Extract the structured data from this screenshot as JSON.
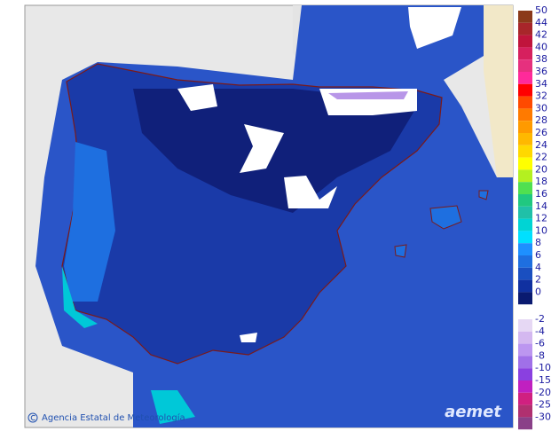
{
  "credit": "Agencia Estatal de Meteorología",
  "logo": "aemet",
  "legend": {
    "warm": [
      {
        "label": "50",
        "color": "#8b3a1a"
      },
      {
        "label": "44",
        "color": "#a8262a"
      },
      {
        "label": "42",
        "color": "#c0143c"
      },
      {
        "label": "40",
        "color": "#d6205e"
      },
      {
        "label": "38",
        "color": "#e6307e"
      },
      {
        "label": "36",
        "color": "#ff2a9a"
      },
      {
        "label": "34",
        "color": "#ff0000"
      },
      {
        "label": "32",
        "color": "#ff4a00"
      },
      {
        "label": "30",
        "color": "#ff7a00"
      },
      {
        "label": "28",
        "color": "#ff9a00"
      },
      {
        "label": "26",
        "color": "#ffb800"
      },
      {
        "label": "24",
        "color": "#ffd800"
      },
      {
        "label": "22",
        "color": "#ffff00"
      },
      {
        "label": "20",
        "color": "#b4f020"
      },
      {
        "label": "18",
        "color": "#50e050"
      },
      {
        "label": "16",
        "color": "#20c880"
      },
      {
        "label": "14",
        "color": "#20c0a8"
      },
      {
        "label": "12",
        "color": "#00d4d4"
      },
      {
        "label": "10",
        "color": "#00e0ff"
      },
      {
        "label": "8",
        "color": "#1e90ff"
      },
      {
        "label": "6",
        "color": "#1e6fe0"
      },
      {
        "label": "4",
        "color": "#1a4fc0"
      },
      {
        "label": "2",
        "color": "#1030a0"
      },
      {
        "label": "0",
        "color": "#0a1a70"
      }
    ],
    "cold": [
      {
        "label": "-2",
        "color": "#e6d8f4"
      },
      {
        "label": "-4",
        "color": "#d4b8f0"
      },
      {
        "label": "-6",
        "color": "#bc96f0"
      },
      {
        "label": "-8",
        "color": "#a070e8"
      },
      {
        "label": "-10",
        "color": "#8a40e0"
      },
      {
        "label": "-15",
        "color": "#c020c0"
      },
      {
        "label": "-20",
        "color": "#d02080"
      },
      {
        "label": "-25",
        "color": "#b03070"
      },
      {
        "label": "-30",
        "color": "#8a4088"
      }
    ]
  }
}
